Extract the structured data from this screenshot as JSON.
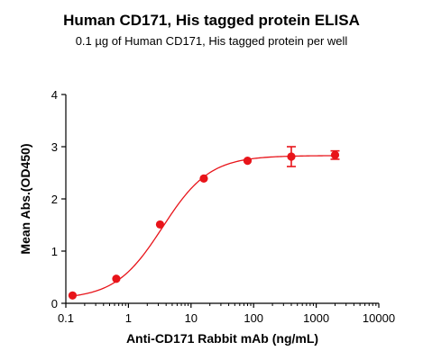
{
  "chart_data": {
    "type": "scatter",
    "title": "Human CD171, His tagged protein ELISA",
    "subtitle": "0.1 µg of Human CD171, His tagged protein per well",
    "xlabel": "Anti-CD171 Rabbit mAb (ng/mL)",
    "ylabel": "Mean Abs.(OD450)",
    "x_scale": "log",
    "xlim": [
      0.1,
      10000
    ],
    "ylim": [
      0,
      4
    ],
    "x_ticks": [
      "0.1",
      "1",
      "10",
      "100",
      "1000",
      "10000"
    ],
    "y_ticks": [
      "0",
      "1",
      "2",
      "3",
      "4"
    ],
    "grid": false,
    "color": "#e8141a",
    "series": [
      {
        "x": [
          0.128,
          0.64,
          3.2,
          16,
          80,
          400,
          2000
        ],
        "y": [
          0.15,
          0.47,
          1.51,
          2.39,
          2.73,
          2.81,
          2.84
        ],
        "error": [
          0.02,
          0.02,
          0.03,
          0.03,
          0.02,
          0.19,
          0.08
        ]
      }
    ],
    "fit": {
      "bottom": 0.08,
      "top": 2.83,
      "ec50": 3.5,
      "hill": 1.15
    }
  }
}
